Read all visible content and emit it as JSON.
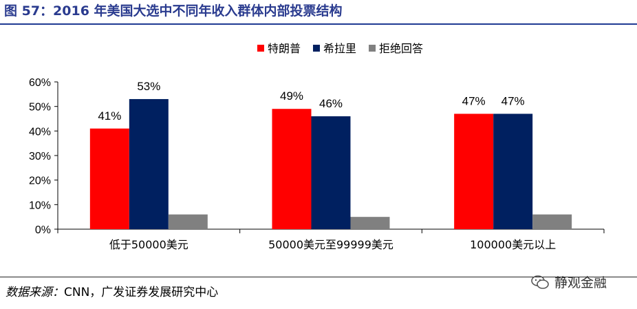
{
  "title": "图 57：2016 年美国大选中不同年收入群体内部投票结构",
  "source": {
    "label": "数据来源：",
    "text": "CNN，广发证券发展研究中心"
  },
  "watermark": {
    "text": "静观金融",
    "icon": "wechat-icon"
  },
  "chart_data": {
    "type": "bar",
    "title": "",
    "xlabel": "",
    "ylabel": "",
    "ylim": [
      0,
      60
    ],
    "y_ticks": [
      "0%",
      "10%",
      "20%",
      "30%",
      "40%",
      "50%",
      "60%"
    ],
    "unit": "%",
    "grid": false,
    "legend_position": "top-right",
    "categories": [
      "低于50000美元",
      "50000美元至99999美元",
      "100000美元以上"
    ],
    "series": [
      {
        "name": "特朗普",
        "color": "#ff0000",
        "values": [
          41,
          49,
          47
        ],
        "labels": [
          "41%",
          "49%",
          "47%"
        ]
      },
      {
        "name": "希拉里",
        "color": "#002060",
        "values": [
          53,
          46,
          47
        ],
        "labels": [
          "53%",
          "46%",
          "47%"
        ]
      },
      {
        "name": "拒绝回答",
        "color": "#808080",
        "values": [
          6,
          5,
          6
        ],
        "labels": [
          "",
          "",
          ""
        ]
      }
    ]
  }
}
